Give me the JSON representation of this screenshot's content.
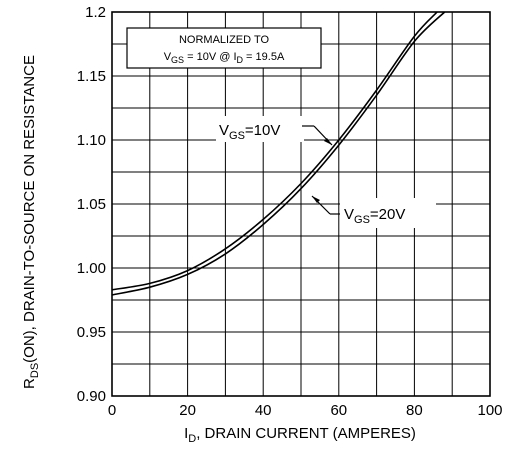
{
  "chart_data": {
    "type": "line",
    "xlabel": {
      "main": "I",
      "sub": "D",
      "rest": ", DRAIN CURRENT (AMPERES)"
    },
    "ylabel": {
      "main": "R",
      "sub": "DS",
      "rest": "(ON), DRAIN-TO-SOURCE ON RESISTANCE"
    },
    "xlim": [
      0,
      100
    ],
    "ylim": [
      0.9,
      1.2
    ],
    "xticks": [
      0,
      20,
      40,
      60,
      80,
      100
    ],
    "xtick_labels": [
      "0",
      "20",
      "40",
      "60",
      "80",
      "100"
    ],
    "yticks": [
      0.9,
      0.95,
      1.0,
      1.05,
      1.1,
      1.15,
      1.2
    ],
    "ytick_labels": [
      "0.90",
      "0.95",
      "1.00",
      "1.05",
      "1.10",
      "1.15",
      "1.2"
    ],
    "grid": true,
    "note": {
      "line1": "NORMALIZED TO",
      "v": "V",
      "v_sub": "GS",
      "v_rest": " = 10V  @  ",
      "i": "I",
      "i_sub": "D",
      "i_rest": " = 19.5A"
    },
    "series": [
      {
        "name": "VGS=10V",
        "label": {
          "main": "V",
          "sub": "GS",
          "rest": "=10V"
        },
        "x": [
          0,
          10,
          20,
          30,
          40,
          50,
          60,
          70,
          80,
          86
        ],
        "y": [
          0.983,
          0.988,
          0.998,
          1.015,
          1.038,
          1.066,
          1.1,
          1.139,
          1.181,
          1.2
        ]
      },
      {
        "name": "VGS=20V",
        "label": {
          "main": "V",
          "sub": "GS",
          "rest": "=20V"
        },
        "x": [
          0,
          10,
          20,
          30,
          40,
          50,
          60,
          70,
          80,
          88
        ],
        "y": [
          0.979,
          0.985,
          0.995,
          1.011,
          1.034,
          1.062,
          1.096,
          1.135,
          1.177,
          1.2
        ]
      }
    ]
  }
}
